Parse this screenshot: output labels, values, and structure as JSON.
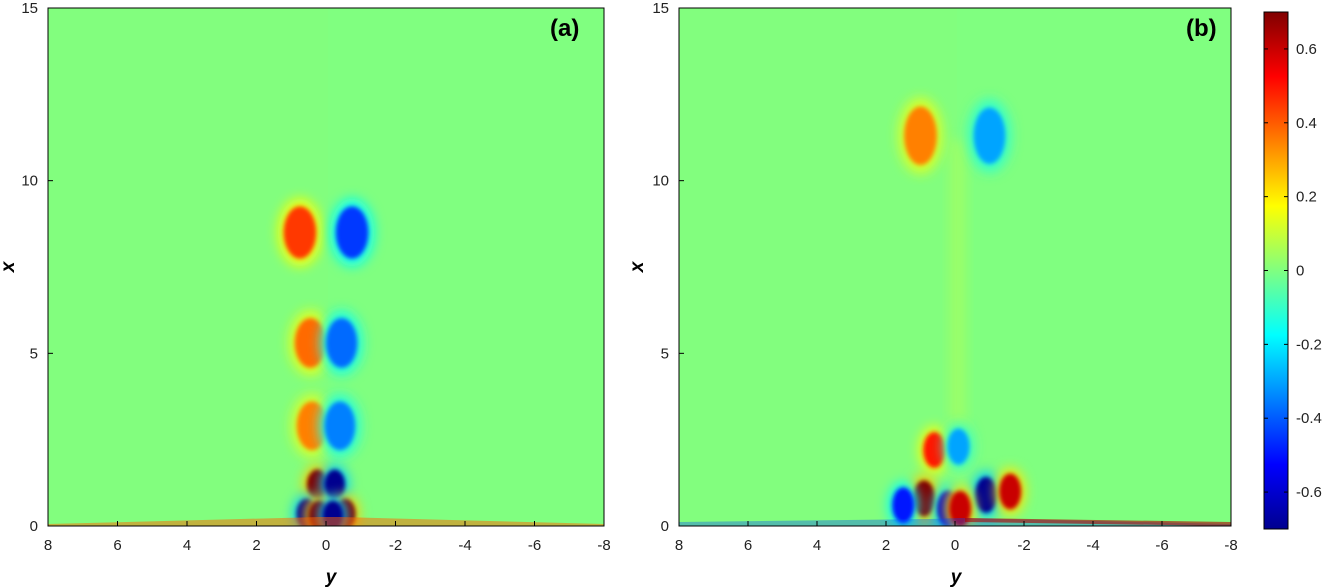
{
  "chart_data": [
    {
      "type": "heatmap",
      "panel_label": "(a)",
      "xlabel": "y",
      "ylabel": "x",
      "x_axis_reversed": true,
      "xlim": [
        8,
        -8
      ],
      "ylim": [
        0,
        15
      ],
      "xticks": [
        "8",
        "6",
        "4",
        "2",
        "0",
        "-2",
        "-4",
        "-6",
        "-8"
      ],
      "yticks": [
        "0",
        "5",
        "10",
        "15"
      ],
      "background_value": 0,
      "features": [
        {
          "y": 0.75,
          "x": 8.5,
          "value": 0.45
        },
        {
          "y": -0.75,
          "x": 8.5,
          "value": -0.45
        },
        {
          "y": 0.45,
          "x": 5.3,
          "value": 0.38
        },
        {
          "y": -0.45,
          "x": 5.3,
          "value": -0.38
        },
        {
          "y": 0.4,
          "x": 2.9,
          "value": 0.35
        },
        {
          "y": -0.4,
          "x": 2.9,
          "value": -0.35
        },
        {
          "y": 0.25,
          "x": 1.2,
          "value": 0.7
        },
        {
          "y": -0.25,
          "x": 1.2,
          "value": -0.7
        },
        {
          "y": 0.55,
          "x": 0.35,
          "value": -0.7
        },
        {
          "y": -0.55,
          "x": 0.35,
          "value": 0.7
        },
        {
          "y": 0.2,
          "x": 0.3,
          "value": 0.7
        },
        {
          "y": -0.2,
          "x": 0.3,
          "value": -0.7
        }
      ]
    },
    {
      "type": "heatmap",
      "panel_label": "(b)",
      "xlabel": "y",
      "ylabel": "x",
      "x_axis_reversed": true,
      "xlim": [
        8,
        -8
      ],
      "ylim": [
        0,
        15
      ],
      "xticks": [
        "8",
        "6",
        "4",
        "2",
        "0",
        "-2",
        "-4",
        "-6",
        "-8"
      ],
      "yticks": [
        "0",
        "5",
        "10",
        "15"
      ],
      "background_value": 0,
      "features": [
        {
          "y": 1.0,
          "x": 11.3,
          "value": 0.35
        },
        {
          "y": -1.0,
          "x": 11.3,
          "value": -0.3
        },
        {
          "y": 0.6,
          "x": 2.2,
          "value": 0.5
        },
        {
          "y": -0.1,
          "x": 2.3,
          "value": -0.3
        },
        {
          "y": 0.9,
          "x": 0.8,
          "value": 0.7
        },
        {
          "y": -0.9,
          "x": 0.9,
          "value": -0.7
        },
        {
          "y": 1.5,
          "x": 0.6,
          "value": -0.5
        },
        {
          "y": -1.6,
          "x": 1.0,
          "value": 0.6
        },
        {
          "y": 0.2,
          "x": 0.5,
          "value": -0.6
        },
        {
          "y": -0.15,
          "x": 0.5,
          "value": 0.6
        }
      ]
    }
  ],
  "colorbar": {
    "range": [
      -0.7,
      0.7
    ],
    "ticks": [
      "0.6",
      "0.4",
      "0.2",
      "0",
      "-0.2",
      "-0.4",
      "-0.6"
    ],
    "colormap": "jet"
  }
}
